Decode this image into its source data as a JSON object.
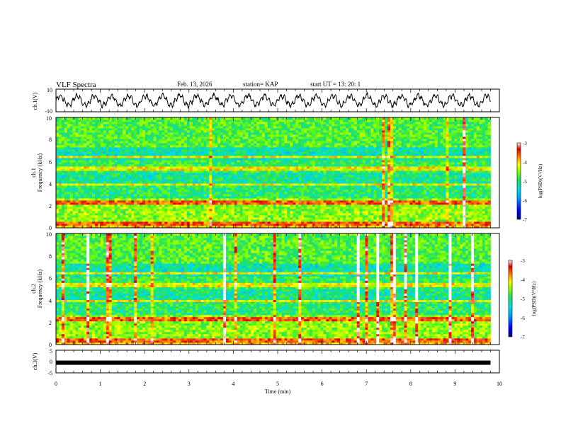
{
  "header": {
    "title": "VLF Spectra",
    "date": "Feb. 13, 2026",
    "station": "station= KAP",
    "start_time": "start UT =   13: 20: 1"
  },
  "chart_data": [
    {
      "type": "line",
      "name": "ch1-waveform",
      "ylabel": "ch.1(V)",
      "ylim": [
        -10,
        10
      ],
      "yticks": [
        "10",
        "-10"
      ],
      "xlim": [
        0,
        10
      ],
      "signal": "oscillating waveform, approx. -5 to 5 V"
    },
    {
      "type": "heatmap",
      "name": "ch1-spectrogram",
      "ylabel_top": "ch.1",
      "ylabel": "Frequency (kHz)",
      "ylim": [
        0,
        10
      ],
      "yticks": [
        "0",
        "2",
        "4",
        "6",
        "8",
        "10"
      ],
      "xlim": [
        0,
        10
      ],
      "colorbar": {
        "label": "log(PSD)(V²/Hz)",
        "range": [
          -7,
          -3
        ],
        "ticks": [
          "-3",
          "-4",
          "-5",
          "-6",
          "-7"
        ],
        "colormap": [
          "#000080",
          "#0000ff",
          "#00a0ff",
          "#00e0e0",
          "#20e060",
          "#80ff00",
          "#ffff00",
          "#ff8000",
          "#e00000",
          "#ffffff"
        ]
      }
    },
    {
      "type": "heatmap",
      "name": "ch2-spectrogram",
      "ylabel_top": "ch.2",
      "ylabel": "Frequency (kHz)",
      "ylim": [
        0,
        10
      ],
      "yticks": [
        "0",
        "2",
        "4",
        "6",
        "8",
        "10"
      ],
      "xlim": [
        0,
        10
      ],
      "colorbar": {
        "label": "log(PSD)(V²/Hz)",
        "range": [
          -7,
          -3
        ],
        "ticks": [
          "-3",
          "-4",
          "-5",
          "-6",
          "-7"
        ],
        "colormap": [
          "#000080",
          "#0000ff",
          "#00a0ff",
          "#00e0e0",
          "#20e060",
          "#80ff00",
          "#ffff00",
          "#ff8000",
          "#e00000",
          "#ffffff"
        ]
      }
    },
    {
      "type": "line",
      "name": "ch3-waveform",
      "ylabel": "ch.3(V)",
      "ylim": [
        -5,
        5
      ],
      "yticks": [
        "5",
        "0",
        "-5"
      ],
      "xlim": [
        0,
        10
      ],
      "xlabel": "Time (min)",
      "xticks": [
        "0",
        "1",
        "2",
        "3",
        "4",
        "5",
        "6",
        "7",
        "8",
        "9",
        "10"
      ],
      "signal": "nearly constant at approx. -0.5 V",
      "level": -0.5
    }
  ]
}
